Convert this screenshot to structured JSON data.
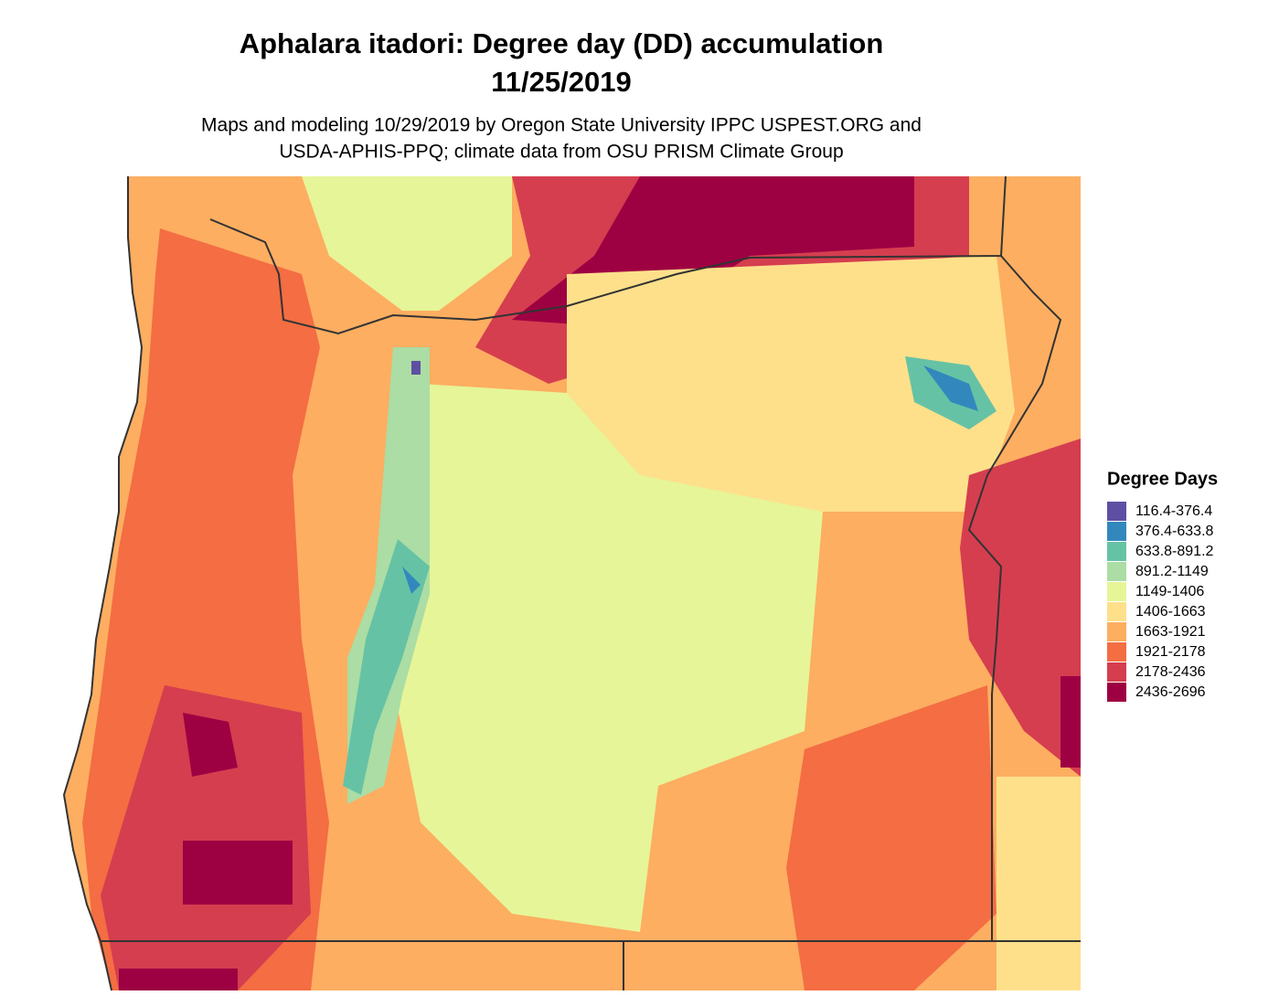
{
  "title": [
    "Aphalara itadori: Degree day (DD) accumulation",
    "11/25/2019"
  ],
  "subtitle": [
    "Maps and modeling 10/29/2019 by Oregon State University IPPC USPEST.ORG and",
    "USDA-APHIS-PPQ; climate data from OSU PRISM Climate Group"
  ],
  "legend": {
    "title": "Degree Days",
    "items": [
      {
        "label": "116.4-376.4",
        "color": "#5e4fa2"
      },
      {
        "label": "376.4-633.8",
        "color": "#3288bd"
      },
      {
        "label": "633.8-891.2",
        "color": "#66c2a5"
      },
      {
        "label": "891.2-1149",
        "color": "#abdda4"
      },
      {
        "label": "1149-1406",
        "color": "#e6f598"
      },
      {
        "label": "1406-1663",
        "color": "#fee08b"
      },
      {
        "label": "1663-1921",
        "color": "#fdae61"
      },
      {
        "label": "1921-2178",
        "color": "#f46d43"
      },
      {
        "label": "2178-2436",
        "color": "#d53e4f"
      },
      {
        "label": "2436-2696",
        "color": "#9e0142"
      }
    ]
  }
}
